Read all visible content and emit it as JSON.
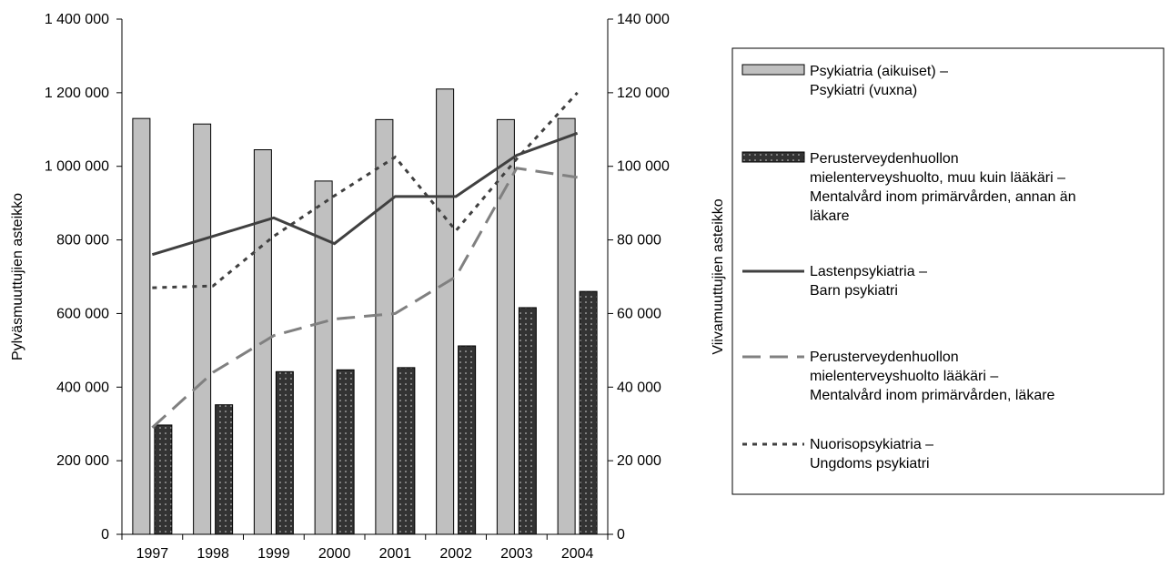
{
  "chart_data": {
    "type": "bar",
    "title": "",
    "categories": [
      "1997",
      "1998",
      "1999",
      "2000",
      "2001",
      "2002",
      "2003",
      "2004"
    ],
    "y_left": {
      "label": "Pylväsmuuttujien asteikko",
      "range": [
        0,
        1400000
      ],
      "ticks": [
        0,
        200000,
        400000,
        600000,
        800000,
        1000000,
        1200000,
        1400000
      ],
      "tick_labels": [
        "0",
        "200 000",
        "400 000",
        "600 000",
        "800 000",
        "1 000 000",
        "1 200 000",
        "1 400 000"
      ]
    },
    "y_right": {
      "label": "Viivamuuttujien asteikko",
      "range": [
        0,
        140000
      ],
      "ticks": [
        0,
        20000,
        40000,
        60000,
        80000,
        100000,
        120000,
        140000
      ],
      "tick_labels": [
        "0",
        "20 000",
        "40 000",
        "60 000",
        "80 000",
        "100 000",
        "120 000",
        "140 000"
      ]
    },
    "bar_series": [
      {
        "name": "Psykiatria (aikuiset) – Psykiatri (vuxna)",
        "legend_lines": [
          "Psykiatria (aikuiset) –",
          "Psykiatri (vuxna)"
        ],
        "color": "#c0c0c0",
        "values": [
          1130000,
          1115000,
          1045000,
          960000,
          1127000,
          1210000,
          1127000,
          1130000
        ]
      },
      {
        "name": "Perusterveydenhuollon mielenterveyshuolto, muu kuin lääkäri – Mentalvård inom primärvården, annan än läkare",
        "legend_lines": [
          "Perusterveydenhuollon",
          "mielenterveyshuolto, muu kuin lääkäri –",
          "Mentalvård inom primärvården, annan än",
          "läkare"
        ],
        "color": "#333333",
        "pattern": "dotted",
        "values": [
          297000,
          352000,
          442000,
          447000,
          453000,
          512000,
          616000,
          660000
        ]
      }
    ],
    "line_series": [
      {
        "name": "Lastenpsykiatria – Barn psykiatri",
        "legend_lines": [
          "Lastenpsykiatria –",
          "Barn psykiatri"
        ],
        "color": "#404040",
        "style": "solid",
        "values": [
          76000,
          81000,
          86000,
          79000,
          91800,
          91800,
          103000,
          109000
        ]
      },
      {
        "name": "Perusterveydenhuollon mielenterveyshuolto lääkäri – Mentalvård inom primärvården, läkare",
        "legend_lines": [
          "Perusterveydenhuollon",
          "mielenterveyshuolto lääkäri –",
          "Mentalvård inom primärvården, läkare"
        ],
        "color": "#808080",
        "style": "long-dash",
        "values": [
          29000,
          44000,
          54000,
          58500,
          60000,
          70000,
          99500,
          97000
        ]
      },
      {
        "name": "Nuorisopsykiatria – Ungdoms psykiatri",
        "legend_lines": [
          "Nuorisopsykiatria –",
          "Ungdoms psykiatri"
        ],
        "color": "#404040",
        "style": "short-dash",
        "values": [
          67000,
          67500,
          81000,
          92000,
          102500,
          82500,
          102000,
          120000
        ]
      }
    ],
    "legend_position": "right",
    "grid": false
  }
}
